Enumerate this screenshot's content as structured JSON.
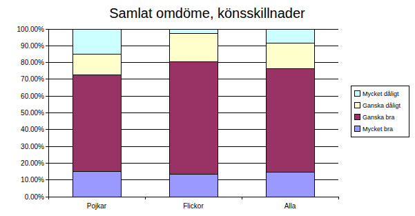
{
  "chart_data": {
    "type": "bar",
    "title": "Samlat omdöme, könsskillnader",
    "categories": [
      "Pojkar",
      "Flickor",
      "Alla"
    ],
    "stacked": true,
    "series": [
      {
        "name": "Mycket bra",
        "color": "#9999ff",
        "values": [
          15,
          13.5,
          14.5
        ]
      },
      {
        "name": "Ganska bra",
        "color": "#993366",
        "values": [
          57.5,
          67,
          62
        ]
      },
      {
        "name": "Ganska dåligt",
        "color": "#ffffcc",
        "values": [
          12.5,
          17,
          15
        ]
      },
      {
        "name": "Mycket dåligt",
        "color": "#ccffff",
        "values": [
          15,
          2.5,
          8.5
        ]
      }
    ],
    "ylim": [
      0,
      100
    ],
    "yticks": [
      {
        "value": 0,
        "label": "0.00%"
      },
      {
        "value": 10,
        "label": "10.00%"
      },
      {
        "value": 20,
        "label": "20.00%"
      },
      {
        "value": 30,
        "label": "30.00%"
      },
      {
        "value": 40,
        "label": "40.00%"
      },
      {
        "value": 50,
        "label": "50.00%"
      },
      {
        "value": 60,
        "label": "60.00%"
      },
      {
        "value": 70,
        "label": "70.00%"
      },
      {
        "value": 80,
        "label": "80.00%"
      },
      {
        "value": 90,
        "label": "90.00%"
      },
      {
        "value": 100,
        "label": "100.00%"
      }
    ],
    "grid": true,
    "legend": "right"
  }
}
